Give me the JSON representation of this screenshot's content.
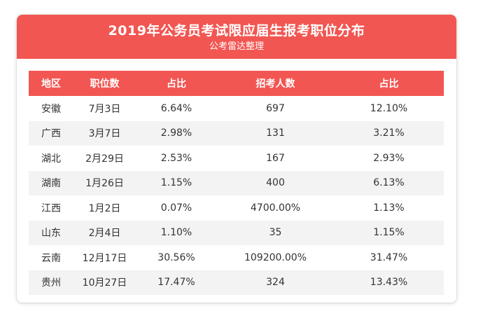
{
  "header": {
    "title": "2019年公务员考试限应届生报考职位分布",
    "subtitle": "公考雷达整理"
  },
  "colors": {
    "accent": "#f25652",
    "stripe": "#f3f3f3"
  },
  "table": {
    "columns": [
      "地区",
      "职位数",
      "占比",
      "招考人数",
      "占比"
    ],
    "rows": [
      [
        "安徽",
        "7月3日",
        "6.64%",
        "697",
        "12.10%"
      ],
      [
        "广西",
        "3月7日",
        "2.98%",
        "131",
        "3.21%"
      ],
      [
        "湖北",
        "2月29日",
        "2.53%",
        "167",
        "2.93%"
      ],
      [
        "湖南",
        "1月26日",
        "1.15%",
        "400",
        "6.13%"
      ],
      [
        "江西",
        "1月2日",
        "0.07%",
        "4700.00%",
        "1.13%"
      ],
      [
        "山东",
        "2月4日",
        "1.10%",
        "35",
        "1.15%"
      ],
      [
        "云南",
        "12月17日",
        "30.56%",
        "109200.00%",
        "31.47%"
      ],
      [
        "贵州",
        "10月27日",
        "17.47%",
        "324",
        "13.43%"
      ]
    ]
  }
}
